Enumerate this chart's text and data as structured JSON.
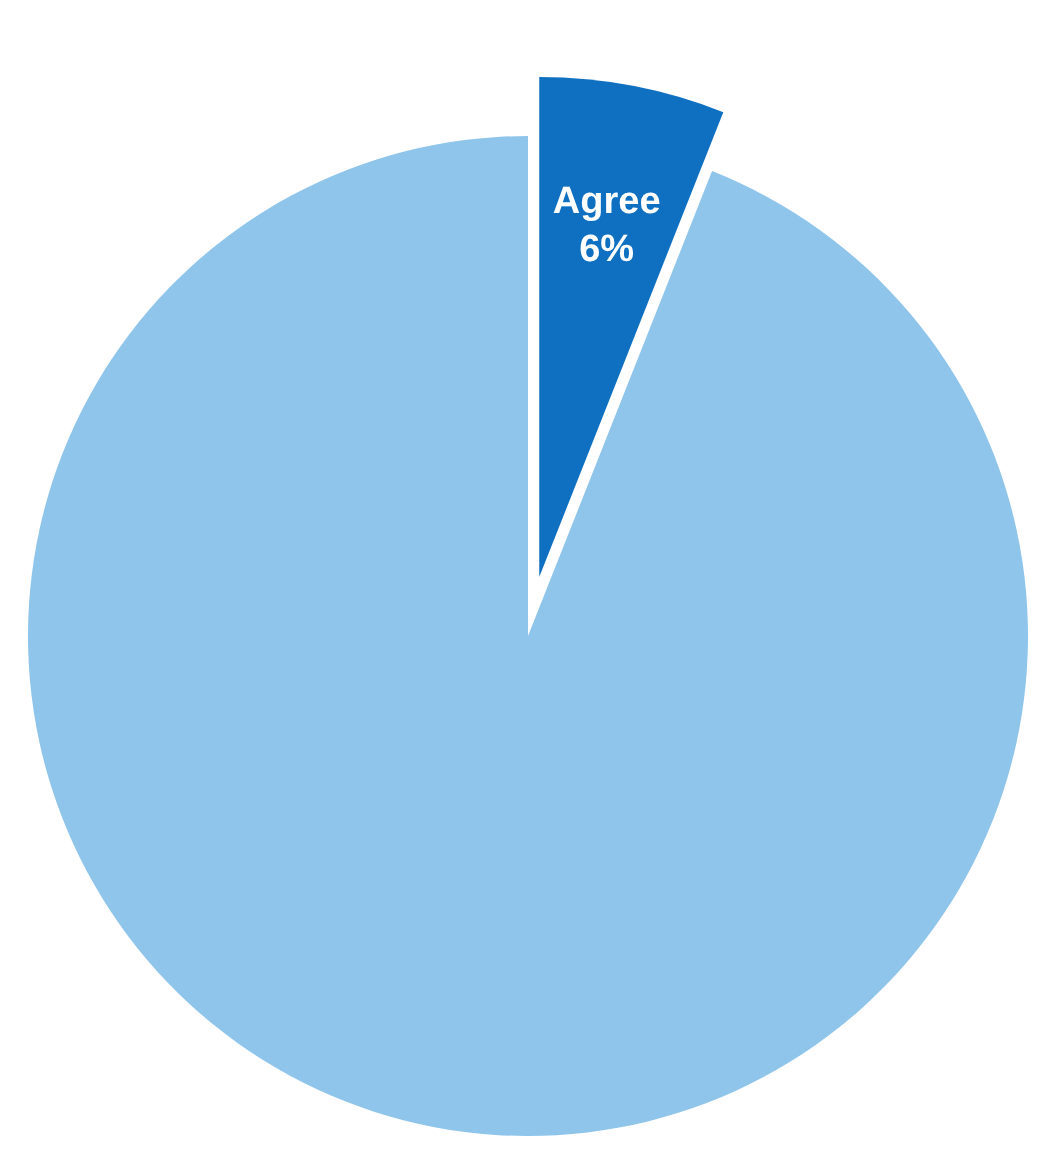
{
  "chart_data": {
    "type": "pie",
    "categories": [
      "Agree",
      null
    ],
    "values": [
      6,
      94
    ],
    "colors": [
      "#0f70c1",
      "#8fc5eb"
    ],
    "value_labels": [
      "6%",
      null
    ]
  }
}
